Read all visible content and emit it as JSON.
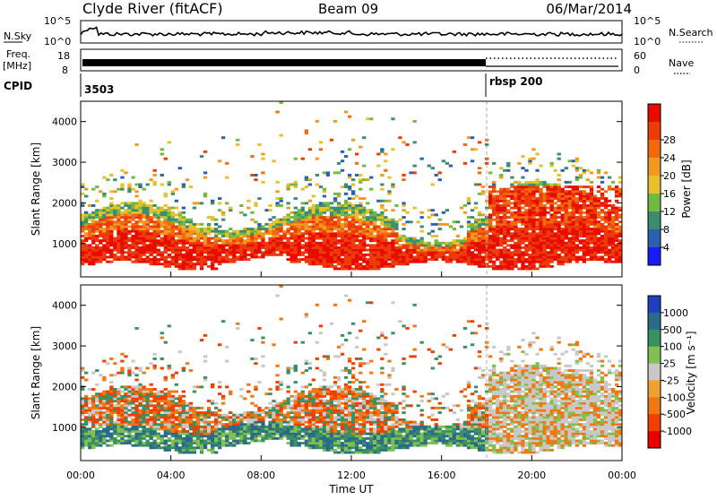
{
  "header": {
    "station": "Clyde River (fitACF)",
    "beam": "Beam 09",
    "date": "06/Mar/2014"
  },
  "noise_panel": {
    "left_label": "N.Sky",
    "right_label": "N.Search",
    "left_ticks": [
      "10^5",
      "10^0"
    ],
    "right_ticks": [
      "10^5",
      "10^0"
    ]
  },
  "freq_panel": {
    "left_label_1": "Freq.",
    "left_label_2": "[MHz]",
    "right_label": "Nave",
    "left_ticks": [
      "18",
      "8"
    ],
    "right_ticks": [
      "60",
      "0"
    ]
  },
  "cpid_panel": {
    "label": "CPID",
    "segments": [
      {
        "name": "3503",
        "start_hour": 0
      },
      {
        "name": "rbsp 200",
        "start_hour": 18
      }
    ]
  },
  "chart_data": [
    {
      "type": "heatmap",
      "name": "power",
      "ylabel": "Slant Range [km]",
      "ylim": [
        180,
        4500
      ],
      "yticks": [
        "1000",
        "2000",
        "3000",
        "4000"
      ],
      "xlim": [
        0,
        24
      ],
      "colorbar_label": "Power [dB]",
      "colorbar_ticks": [
        "4",
        "8",
        "12",
        "16",
        "20",
        "24",
        "28"
      ],
      "colorbar_colors": [
        "#1a1aff",
        "#2b5fb0",
        "#3c8c70",
        "#6fba3f",
        "#e8c02a",
        "#f29a1f",
        "#f26a10",
        "#ee3b0a",
        "#e80c00"
      ]
    },
    {
      "type": "heatmap",
      "name": "velocity",
      "ylabel": "Slant Range [km]",
      "ylim": [
        180,
        4500
      ],
      "yticks": [
        "1000",
        "2000",
        "3000",
        "4000"
      ],
      "xlim": [
        0,
        24
      ],
      "xticks": [
        "00:00",
        "04:00",
        "08:00",
        "12:00",
        "16:00",
        "20:00",
        "00:00"
      ],
      "xlabel": "Time UT",
      "colorbar_label": "Velocity [m s⁻¹]",
      "colorbar_ticks": [
        "1000",
        "500",
        "100",
        "25",
        "-25",
        "-100",
        "-500",
        "-1000"
      ],
      "colorbar_colors": [
        "#1f3fbf",
        "#2a6a8a",
        "#3a9060",
        "#7fc050",
        "#c8c8c8",
        "#f0a030",
        "#f07810",
        "#f04000",
        "#e80000"
      ]
    }
  ]
}
